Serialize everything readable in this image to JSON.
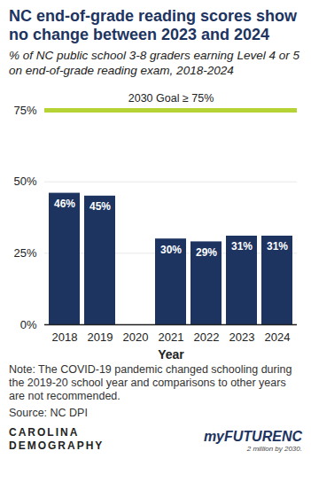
{
  "chart_data": {
    "type": "bar",
    "title": "NC end-of-grade reading scores show no change between 2023 and 2024",
    "subtitle": "% of NC public school 3-8 graders earning Level 4 or 5 on end-of-grade reading exam, 2018-2024",
    "x_label": "Year",
    "categories": [
      "2018",
      "2019",
      "2020",
      "2021",
      "2022",
      "2023",
      "2024"
    ],
    "values": [
      46,
      45,
      null,
      30,
      29,
      31,
      31
    ],
    "value_labels": [
      "46%",
      "45%",
      null,
      "30%",
      "29%",
      "31%",
      "31%"
    ],
    "data_labels": true,
    "color": "#1d3461",
    "ylim": [
      0,
      75
    ],
    "yticks": [
      {
        "value": 0,
        "label": "0%"
      },
      {
        "value": 25,
        "label": "25%"
      },
      {
        "value": 50,
        "label": "50%"
      },
      {
        "value": 75,
        "label": "75%"
      }
    ],
    "grid": true,
    "annotations": [
      {
        "text": "2030 Goal ≥ 75%",
        "y": 75,
        "color": "#b5d334"
      }
    ],
    "note": "Note: The COVID-19 pandemic changed schooling during the 2019-20 school year and comparisons to other years are not recommended.",
    "source": "Source: NC DPI",
    "logos": [
      "CAROLINA",
      "DEMOGRAPHY",
      "myFUTURENC",
      "2 million by 2030."
    ]
  }
}
